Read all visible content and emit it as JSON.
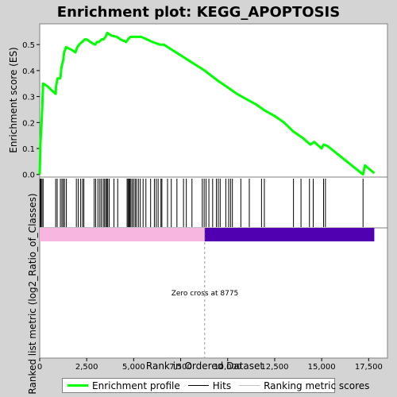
{
  "chart_data": {
    "type": "line",
    "title": "Enrichment plot: KEGG_APOPTOSIS",
    "ylabel_top": "Enrichment score (ES)",
    "ylabel_bottom": "Ranked list metric (log2_Ratio_of_Classes)",
    "xlabel": "Rank in Ordered Dataset",
    "xlim": [
      0,
      18500
    ],
    "ylim": [
      -0.01,
      0.58
    ],
    "x_ticks": [
      0,
      2500,
      5000,
      7500,
      10000,
      12500,
      15000,
      17500
    ],
    "x_tick_labels": [
      "0",
      "2,500",
      "5,000",
      "7,500",
      "10,000",
      "12,500",
      "15,000",
      "17,500"
    ],
    "y_ticks": [
      0.0,
      0.1,
      0.2,
      0.3,
      0.4,
      0.5
    ],
    "y_tick_labels": [
      "0.0",
      "0.1",
      "0.2",
      "0.3",
      "0.4",
      "0.5"
    ],
    "zero_cross_label": "Zero cross at 8775",
    "zero_cross_rank": 8775,
    "total_rank": 17800,
    "enrichment_profile": {
      "x": [
        0,
        40,
        80,
        130,
        180,
        400,
        700,
        850,
        870,
        950,
        1080,
        1120,
        1150,
        1250,
        1300,
        1400,
        1700,
        1900,
        2000,
        2100,
        2250,
        2400,
        2500,
        2800,
        2950,
        3050,
        3150,
        3300,
        3400,
        3500,
        3600,
        3800,
        4100,
        4300,
        4600,
        4750,
        4850,
        5000,
        5200,
        5400,
        5700,
        6000,
        6200,
        6400,
        6600,
        8775,
        9500,
        10000,
        10500,
        11000,
        11500,
        12000,
        12500,
        13000,
        13500,
        14000,
        14400,
        14600,
        15000,
        15100,
        15300,
        17200,
        17300,
        17800
      ],
      "y": [
        0.0,
        0.12,
        0.17,
        0.25,
        0.35,
        0.34,
        0.32,
        0.31,
        0.34,
        0.37,
        0.37,
        0.38,
        0.41,
        0.44,
        0.47,
        0.49,
        0.48,
        0.47,
        0.49,
        0.5,
        0.51,
        0.52,
        0.52,
        0.505,
        0.5,
        0.51,
        0.51,
        0.52,
        0.52,
        0.53,
        0.545,
        0.535,
        0.53,
        0.52,
        0.51,
        0.525,
        0.53,
        0.53,
        0.53,
        0.53,
        0.52,
        0.51,
        0.505,
        0.5,
        0.5,
        0.4,
        0.36,
        0.335,
        0.31,
        0.29,
        0.27,
        0.245,
        0.225,
        0.2,
        0.165,
        0.14,
        0.115,
        0.125,
        0.1,
        0.115,
        0.11,
        0.0,
        0.035,
        0.005
      ]
    },
    "hits": [
      20,
      60,
      120,
      180,
      850,
      930,
      1100,
      1180,
      1250,
      1320,
      1420,
      1950,
      2050,
      2180,
      2280,
      2350,
      2900,
      2980,
      3100,
      3200,
      3280,
      3380,
      3450,
      3520,
      3580,
      3620,
      3700,
      3950,
      4150,
      4650,
      4700,
      4750,
      4800,
      4850,
      4920,
      5000,
      5080,
      5150,
      5250,
      5350,
      5500,
      5650,
      5900,
      6100,
      6200,
      6300,
      6450,
      6500,
      6800,
      7000,
      7300,
      7650,
      7800,
      8100,
      8650,
      8750,
      8850,
      9000,
      9200,
      9400,
      9500,
      9600,
      9900,
      10050,
      10150,
      10250,
      10700,
      11150,
      11800,
      11950,
      13500,
      13900,
      14350,
      14550,
      15100,
      15200,
      17200
    ],
    "metric_positive_end": 8775,
    "metric_colors": {
      "positive": "#f7b6e0",
      "negative": "#5000b0"
    },
    "legend": [
      {
        "label": "Enrichment profile",
        "color": "#00ff00"
      },
      {
        "label": "Hits",
        "color": "#000000"
      },
      {
        "label": "Ranking metric scores",
        "color": "#c0c0c0"
      }
    ]
  }
}
